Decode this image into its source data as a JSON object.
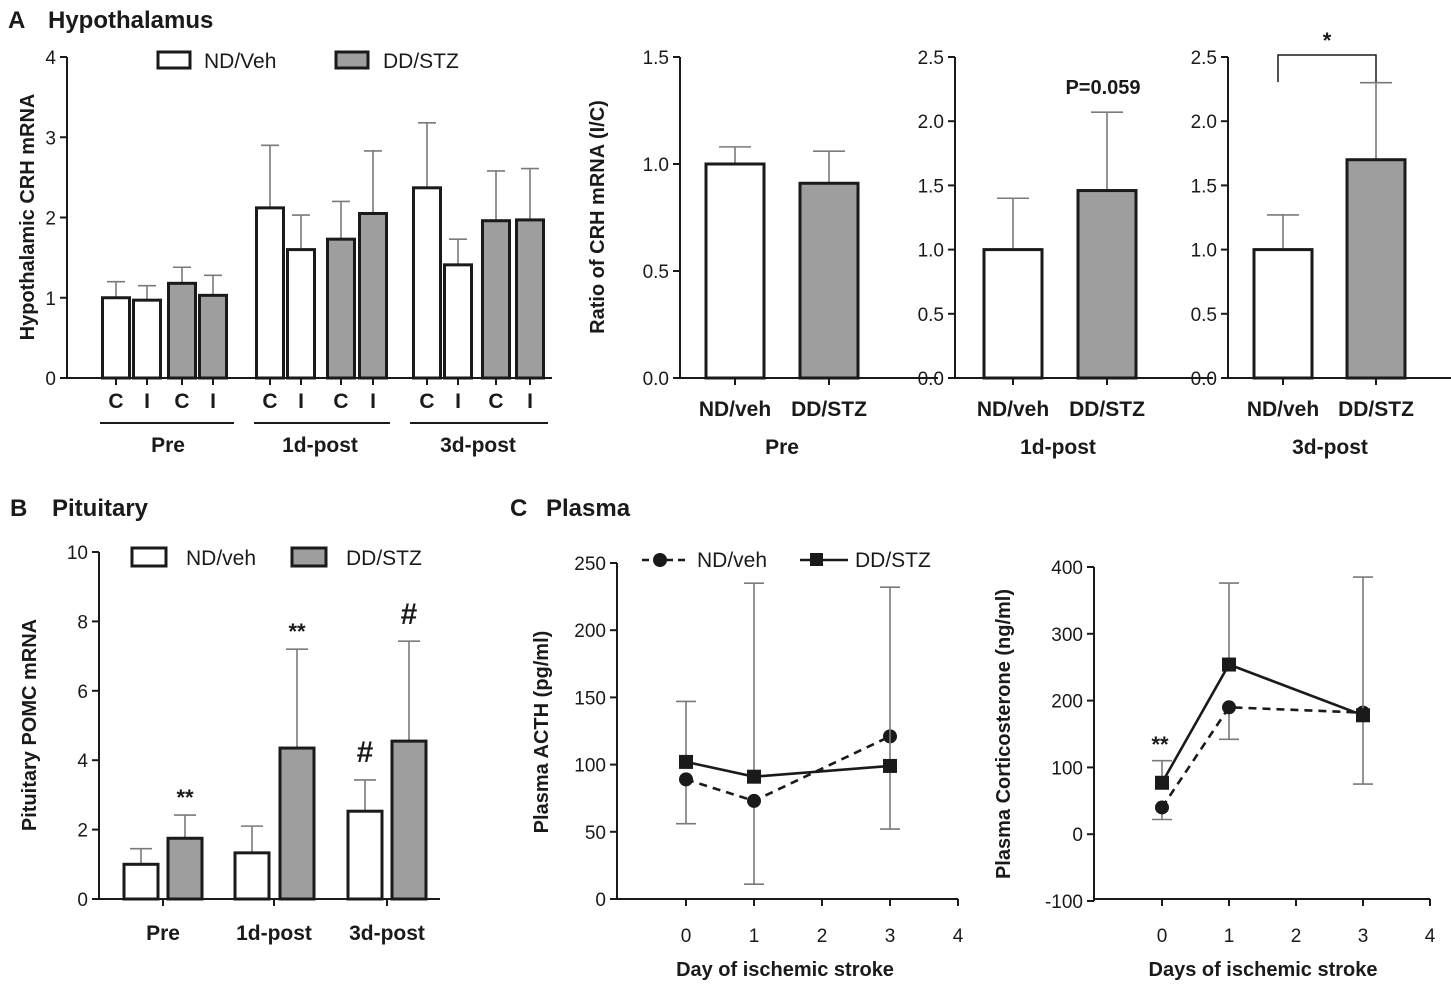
{
  "panels": {
    "A": {
      "letter": "A",
      "title": "Hypothalamus"
    },
    "B": {
      "letter": "B",
      "title": "Pituitary"
    },
    "C": {
      "letter": "C",
      "title": "Plasma"
    }
  },
  "colors": {
    "nd": "#ffffff",
    "dd": "#9e9e9e",
    "ink": "#1a1a1a",
    "err": "#7a7a7a"
  },
  "chart_data": [
    {
      "id": "A1",
      "type": "bar",
      "ylabel": "Hypothalamic CRH mRNA",
      "ylim": [
        0,
        4
      ],
      "yticks": [
        "0",
        "1",
        "2",
        "3",
        "4"
      ],
      "legend": [
        "ND/Veh",
        "DD/STZ"
      ],
      "bar_labels": [
        "C",
        "I",
        "C",
        "I",
        "C",
        "I",
        "C",
        "I",
        "C",
        "I",
        "C",
        "I"
      ],
      "groups": [
        "Pre",
        "1d-post",
        "3d-post"
      ],
      "bars": [
        {
          "value": 1.0,
          "err": 0.2,
          "series": "ND/Veh"
        },
        {
          "value": 0.97,
          "err": 0.18,
          "series": "ND/Veh"
        },
        {
          "value": 1.18,
          "err": 0.2,
          "series": "DD/STZ"
        },
        {
          "value": 1.03,
          "err": 0.25,
          "series": "DD/STZ"
        },
        {
          "value": 2.12,
          "err": 0.78,
          "series": "ND/Veh"
        },
        {
          "value": 1.6,
          "err": 0.43,
          "series": "ND/Veh"
        },
        {
          "value": 1.73,
          "err": 0.47,
          "series": "DD/STZ"
        },
        {
          "value": 2.05,
          "err": 0.78,
          "series": "DD/STZ"
        },
        {
          "value": 2.37,
          "err": 0.81,
          "series": "ND/Veh"
        },
        {
          "value": 1.41,
          "err": 0.32,
          "series": "ND/Veh"
        },
        {
          "value": 1.96,
          "err": 0.62,
          "series": "DD/STZ"
        },
        {
          "value": 1.97,
          "err": 0.64,
          "series": "DD/STZ"
        }
      ]
    },
    {
      "id": "A2",
      "type": "bar",
      "ylabel": "Ratio of CRH mRNA (I/C)",
      "ylim": [
        0,
        1.5
      ],
      "yticks": [
        "0.0",
        "0.5",
        "1.0",
        "1.5"
      ],
      "categories": [
        "ND/veh",
        "DD/STZ"
      ],
      "group": "Pre",
      "values": [
        1.0,
        0.91
      ],
      "errors": [
        0.08,
        0.15
      ]
    },
    {
      "id": "A3",
      "type": "bar",
      "ylim": [
        0,
        2.5
      ],
      "yticks": [
        "0.0",
        "0.5",
        "1.0",
        "1.5",
        "2.0",
        "2.5"
      ],
      "categories": [
        "ND/veh",
        "DD/STZ"
      ],
      "group": "1d-post",
      "values": [
        1.0,
        1.46
      ],
      "errors": [
        0.4,
        0.61
      ],
      "annotation": "P=0.059"
    },
    {
      "id": "A4",
      "type": "bar",
      "ylim": [
        0,
        2.5
      ],
      "yticks": [
        "0.0",
        "0.5",
        "1.0",
        "1.5",
        "2.0",
        "2.5"
      ],
      "categories": [
        "ND/veh",
        "DD/STZ"
      ],
      "group": "3d-post",
      "values": [
        1.0,
        1.7
      ],
      "errors": [
        0.27,
        0.6
      ],
      "annotation": "*"
    },
    {
      "id": "B",
      "type": "bar",
      "ylabel": "Pituitary POMC mRNA",
      "ylim": [
        0,
        10
      ],
      "yticks": [
        "0",
        "2",
        "4",
        "6",
        "8",
        "10"
      ],
      "categories": [
        "Pre",
        "1d-post",
        "3d-post"
      ],
      "legend": [
        "ND/veh",
        "DD/STZ"
      ],
      "series": [
        {
          "name": "ND/veh",
          "values": [
            1.0,
            1.33,
            2.53
          ],
          "errors": [
            0.45,
            0.77,
            0.9
          ]
        },
        {
          "name": "DD/STZ",
          "values": [
            1.75,
            4.35,
            4.55
          ],
          "errors": [
            0.67,
            2.85,
            2.88
          ]
        }
      ],
      "annotations": [
        "**",
        "**",
        "#",
        "#"
      ]
    },
    {
      "id": "C1",
      "type": "line",
      "ylabel": "Plasma ACTH (pg/ml)",
      "xlabel": "Day of ischemic stroke",
      "ylim": [
        0,
        250
      ],
      "xlim": [
        -1,
        4
      ],
      "yticks": [
        "0",
        "50",
        "100",
        "150",
        "200",
        "250"
      ],
      "xticks": [
        "0",
        "1",
        "2",
        "3",
        "4"
      ],
      "legend": [
        "ND/veh",
        "DD/STZ"
      ],
      "series": [
        {
          "name": "ND/veh",
          "x": [
            0,
            1,
            3
          ],
          "y": [
            89,
            73,
            121
          ],
          "err_lo": [
            33,
            62,
            0
          ],
          "err_hi": [
            0,
            0,
            0
          ]
        },
        {
          "name": "DD/STZ",
          "x": [
            0,
            1,
            3
          ],
          "y": [
            102,
            91,
            99
          ],
          "err_lo": [
            0,
            0,
            47
          ],
          "err_hi": [
            45,
            144,
            133
          ]
        }
      ]
    },
    {
      "id": "C2",
      "type": "line",
      "ylabel": "Plasma Corticosterone (ng/ml)",
      "xlabel": "Days of ischemic stroke",
      "ylim": [
        -100,
        400
      ],
      "xlim": [
        -1,
        4
      ],
      "yticks": [
        "-100",
        "0",
        "100",
        "200",
        "300",
        "400"
      ],
      "xticks": [
        "0",
        "1",
        "2",
        "3",
        "4"
      ],
      "series": [
        {
          "name": "ND/veh",
          "x": [
            0,
            1,
            3
          ],
          "y": [
            40,
            190,
            182
          ],
          "err_lo": [
            18,
            48,
            107
          ],
          "err_hi": [
            0,
            0,
            0
          ]
        },
        {
          "name": "DD/STZ",
          "x": [
            0,
            1,
            3
          ],
          "y": [
            77,
            254,
            178
          ],
          "err_lo": [
            0,
            0,
            0
          ],
          "err_hi": [
            33,
            122,
            207
          ]
        }
      ],
      "annotation": "**"
    }
  ]
}
